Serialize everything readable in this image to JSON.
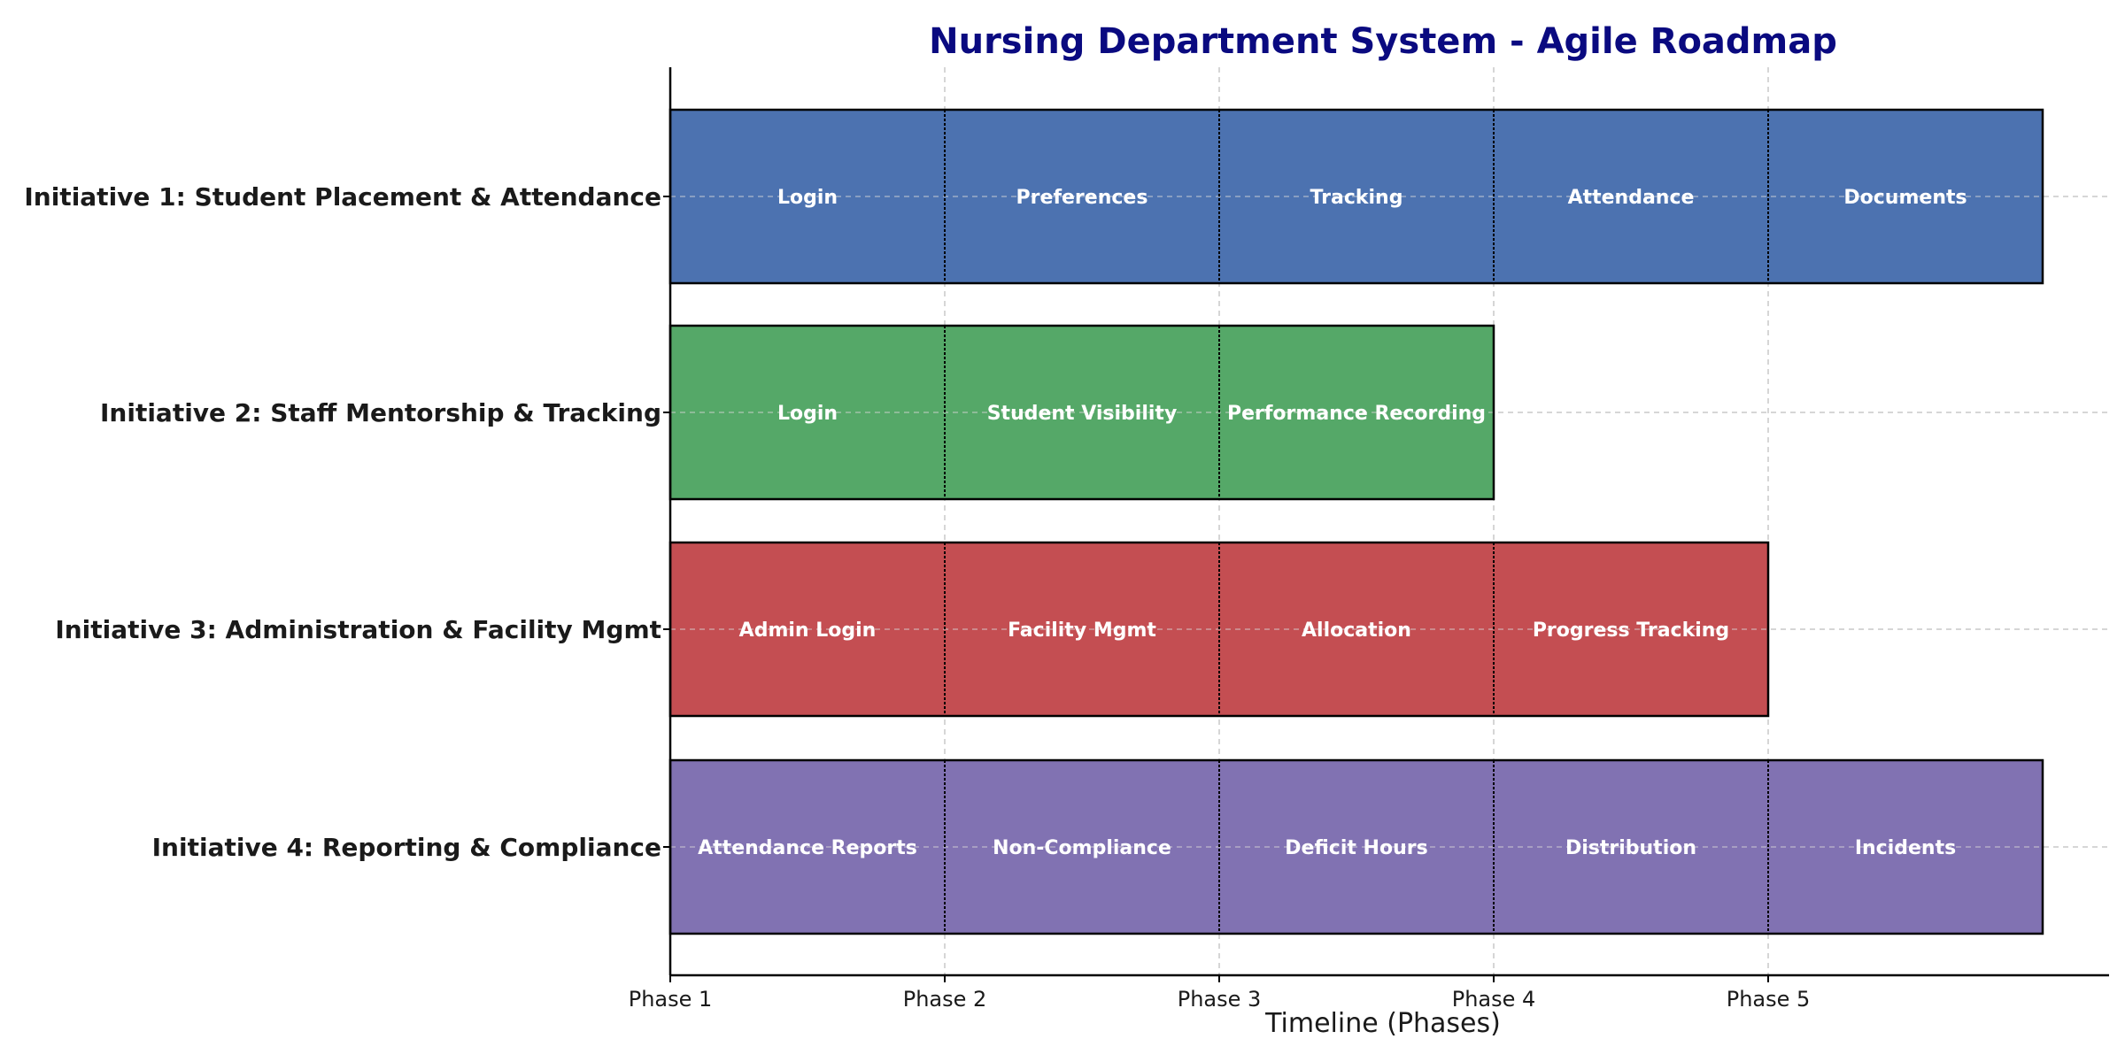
{
  "chart_data": {
    "type": "bar",
    "orientation": "horizontal-stacked",
    "title": "Nursing Department System - Agile Roadmap",
    "xlabel": "Timeline (Phases)",
    "ylabel": "",
    "x_ticks": [
      "Phase 1",
      "Phase 2",
      "Phase 3",
      "Phase 4",
      "Phase 5"
    ],
    "xlim": [
      0,
      5
    ],
    "grid": true,
    "colors": {
      "title": "#0a0a80",
      "axis": "#000000",
      "grid": "#c8c8c8"
    },
    "initiatives": [
      {
        "label": "Initiative 1: Student Placement & Attendance",
        "color": "#4c72b0",
        "segments": [
          "Login",
          "Preferences",
          "Tracking",
          "Attendance",
          "Documents"
        ]
      },
      {
        "label": "Initiative 2: Staff Mentorship & Tracking",
        "color": "#55a868",
        "segments": [
          "Login",
          "Student Visibility",
          "Performance Recording"
        ]
      },
      {
        "label": "Initiative 3: Administration & Facility Mgmt",
        "color": "#c44e52",
        "segments": [
          "Admin Login",
          "Facility Mgmt",
          "Allocation",
          "Progress Tracking"
        ]
      },
      {
        "label": "Initiative 4: Reporting & Compliance",
        "color": "#8172b2",
        "segments": [
          "Attendance Reports",
          "Non-Compliance",
          "Deficit Hours",
          "Distribution",
          "Incidents"
        ]
      }
    ]
  }
}
